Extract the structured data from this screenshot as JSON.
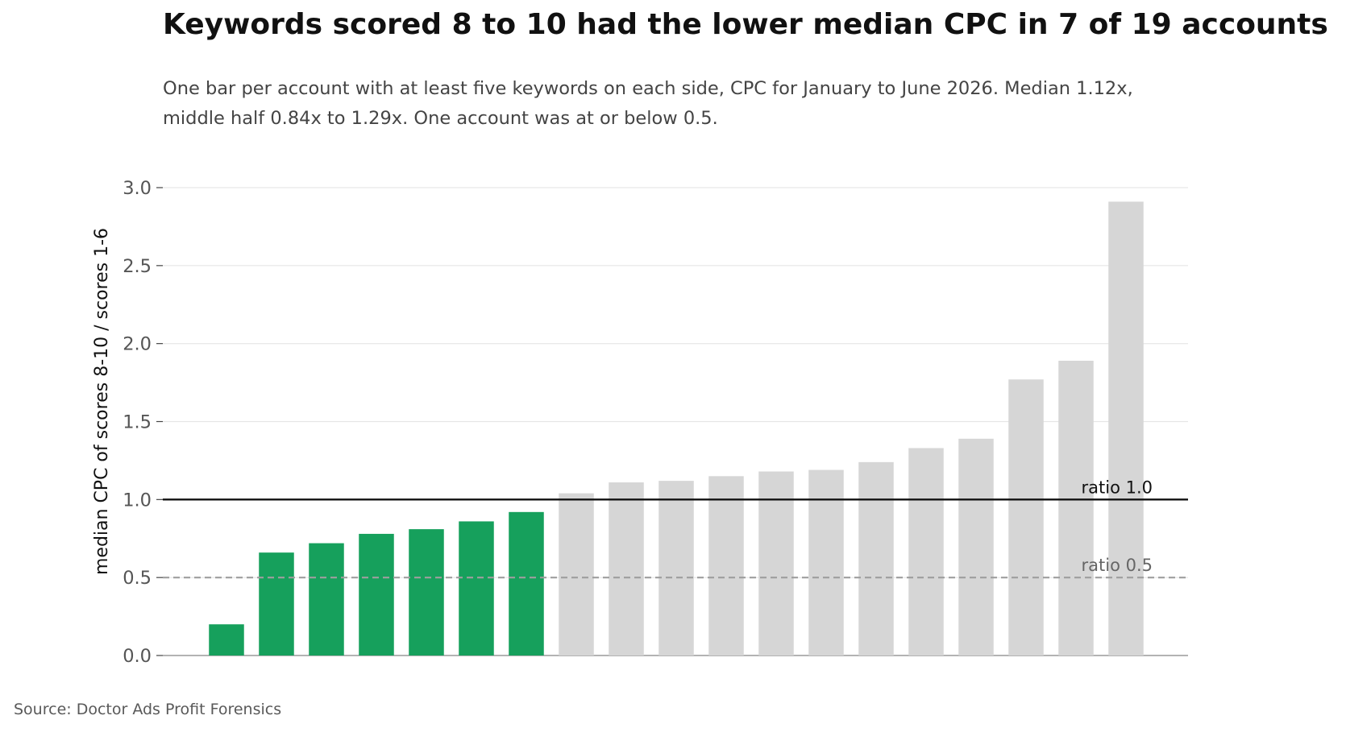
{
  "title": "Keywords scored 8 to 10 had the lower median CPC in 7 of 19 accounts",
  "subtitle_line1": "One bar per account with at least five keywords on each side, CPC for January to June 2026. Median 1.12x,",
  "subtitle_line2": "middle half 0.84x to 1.29x. One account was at or below 0.5.",
  "source": "Source: Doctor Ads Profit Forensics",
  "colors": {
    "highlight": "#16a05c",
    "muted": "#d6d6d6",
    "grid": "#e6e6e6",
    "tick_text": "#555555",
    "reference_line": "#111111",
    "threshold_line": "#9e9e9e"
  },
  "chart_data": {
    "type": "bar",
    "ylabel": "median CPC of scores 8-10 / scores 1-6",
    "xlabel": "",
    "ylim": [
      0,
      3.0
    ],
    "yticks": [
      "0.0",
      "0.5",
      "1.0",
      "1.5",
      "2.0",
      "2.5",
      "3.0"
    ],
    "grid": true,
    "values": [
      0.2,
      0.66,
      0.72,
      0.78,
      0.81,
      0.86,
      0.92,
      1.04,
      1.11,
      1.12,
      1.15,
      1.18,
      1.19,
      1.24,
      1.33,
      1.39,
      1.77,
      1.89,
      2.91
    ],
    "highlighted_below": 1.0,
    "reference_lines": [
      {
        "value": 1.0,
        "label": "ratio 1.0",
        "style": "solid"
      },
      {
        "value": 0.5,
        "label": "ratio 0.5",
        "style": "dashed"
      }
    ]
  }
}
